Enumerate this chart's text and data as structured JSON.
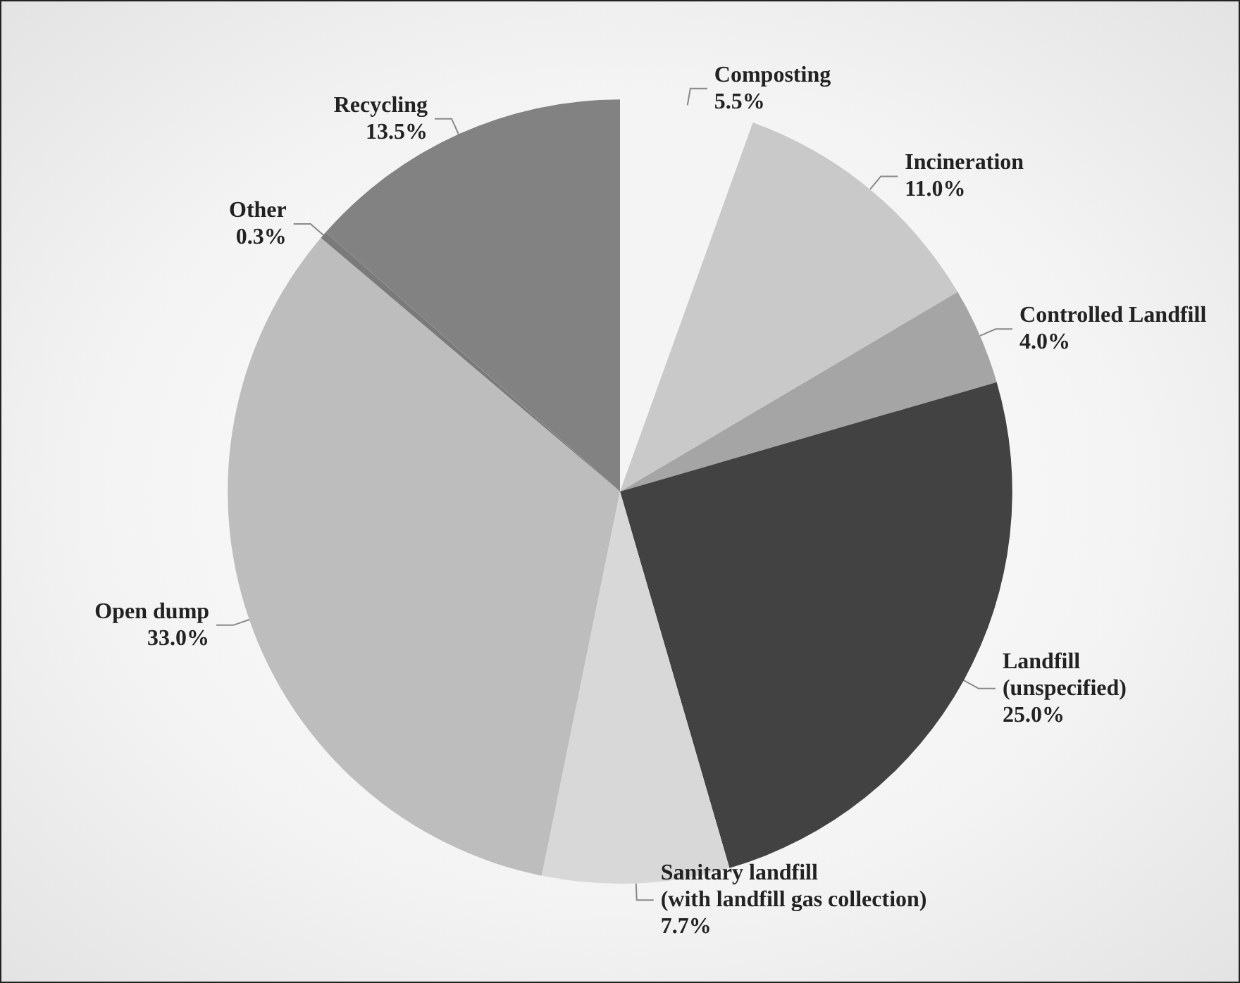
{
  "chart_data": {
    "type": "pie",
    "categories": [
      "Composting",
      "Incineration",
      "Controlled Landfill",
      "Landfill\n(unspecified)",
      "Sanitary landfill\n(with landfill gas collection)",
      "Open dump",
      "Other",
      "Recycling"
    ],
    "values": [
      5.5,
      11.0,
      4.0,
      25.0,
      7.7,
      33.0,
      0.3,
      13.5
    ],
    "value_labels": [
      "5.5%",
      "11.0%",
      "4.0%",
      "25.0%",
      "7.7%",
      "33.0%",
      "0.3%",
      "13.5%"
    ],
    "colors": [
      "#f4f4f4",
      "#c9c9c9",
      "#a5a5a5",
      "#424242",
      "#d8d8d8",
      "#bdbdbd",
      "#7a7a7a",
      "#828282"
    ],
    "legend": false
  }
}
